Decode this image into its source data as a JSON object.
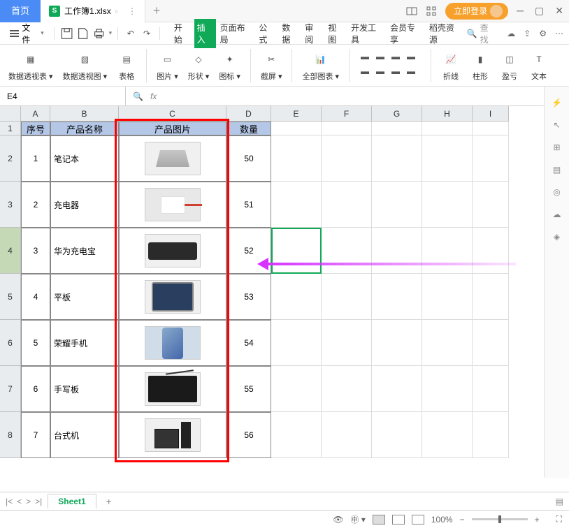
{
  "titlebar": {
    "home": "首页",
    "doc_name": "工作簿1.xlsx",
    "login": "立即登录"
  },
  "menubar": {
    "file": "文件",
    "tabs": [
      "开始",
      "插入",
      "页面布局",
      "公式",
      "数据",
      "审阅",
      "视图",
      "开发工具",
      "会员专享",
      "稻壳资源"
    ],
    "active_index": 1,
    "search": "查找"
  },
  "ribbon": {
    "groups": [
      "数据透视表",
      "数据透视图",
      "表格",
      "图片",
      "形状",
      "图标",
      "截屏",
      "全部图表",
      "折线",
      "柱形",
      "盈亏",
      "文本"
    ]
  },
  "name_box": "E4",
  "grid": {
    "col_widths": {
      "A": 42,
      "B": 98,
      "C": 154,
      "D": 64,
      "E": 72,
      "F": 72,
      "G": 72,
      "H": 72,
      "I": 52
    },
    "row_heights": {
      "header": 20,
      "1": 20,
      "data": 66
    },
    "headers": {
      "A": "序号",
      "B": "产品名称",
      "C": "产品图片",
      "D": "数量"
    },
    "rows": [
      {
        "num": 1,
        "name": "笔记本",
        "qty": 50,
        "img": "laptop"
      },
      {
        "num": 2,
        "name": "充电器",
        "qty": 51,
        "img": "charger"
      },
      {
        "num": 3,
        "name": "华为充电宝",
        "qty": 52,
        "img": "powerbank"
      },
      {
        "num": 4,
        "name": "平板",
        "qty": 53,
        "img": "tablet"
      },
      {
        "num": 5,
        "name": "荣耀手机",
        "qty": 54,
        "img": "phone"
      },
      {
        "num": 6,
        "name": "手写板",
        "qty": 55,
        "img": "drawtab"
      },
      {
        "num": 7,
        "name": "台式机",
        "qty": 56,
        "img": "desktop"
      }
    ],
    "active_cell": {
      "col": "E",
      "row": 4
    },
    "red_box": {
      "col": "C",
      "row_start": 1,
      "row_end": 8
    },
    "arrow_color": "#d633ff"
  },
  "sheet": {
    "name": "Sheet1"
  },
  "status": {
    "zoom": "100%"
  },
  "colors": {
    "primary_blue": "#4a8bf5",
    "green": "#0fa958",
    "orange": "#f7a02b",
    "header_fill": "#b4c7e7",
    "row_hl": "#c5d9b7"
  }
}
